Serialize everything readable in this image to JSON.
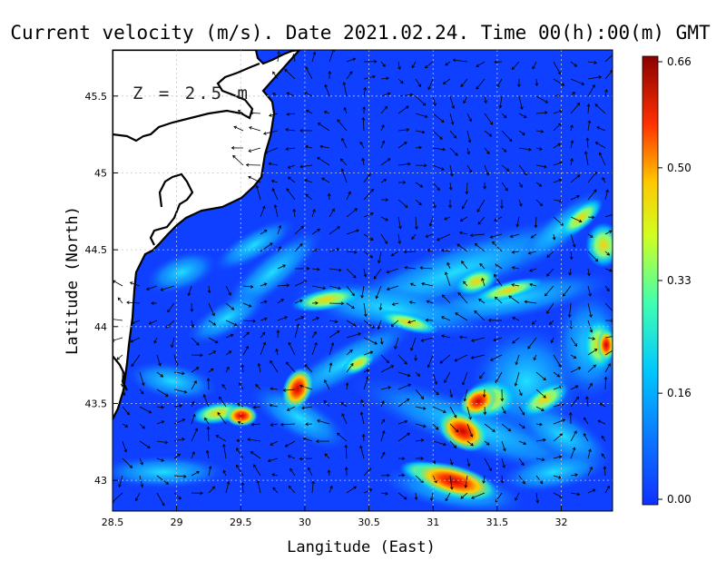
{
  "title": "Current velocity (m/s). Date 2021.02.24. Time 00(h):00(m) GMT",
  "depth_label": "Z = 2.5 m",
  "xlabel": "Langitude (East)",
  "ylabel": "Latitude (North)",
  "x_ticks": [
    "28.5",
    "29",
    "29.5",
    "30",
    "30.5",
    "31",
    "31.5",
    "32"
  ],
  "y_ticks": [
    "43",
    "43.5",
    "44",
    "44.5",
    "45",
    "45.5"
  ],
  "colorbar_ticks": [
    "0.66",
    "0.50",
    "0.33",
    "0.16",
    "0.00"
  ],
  "colors": {
    "min": "#1040ff",
    "low": "#00c8ff",
    "mid": "#ffff00",
    "high": "#ff2000",
    "max": "#8b0000",
    "land": "#ffffff",
    "coast": "#000000"
  },
  "map": {
    "lon_range": [
      28.5,
      32.4
    ],
    "lat_range": [
      42.8,
      45.8
    ],
    "variable": "current velocity",
    "units": "m/s",
    "value_range": [
      0.0,
      0.66
    ]
  }
}
